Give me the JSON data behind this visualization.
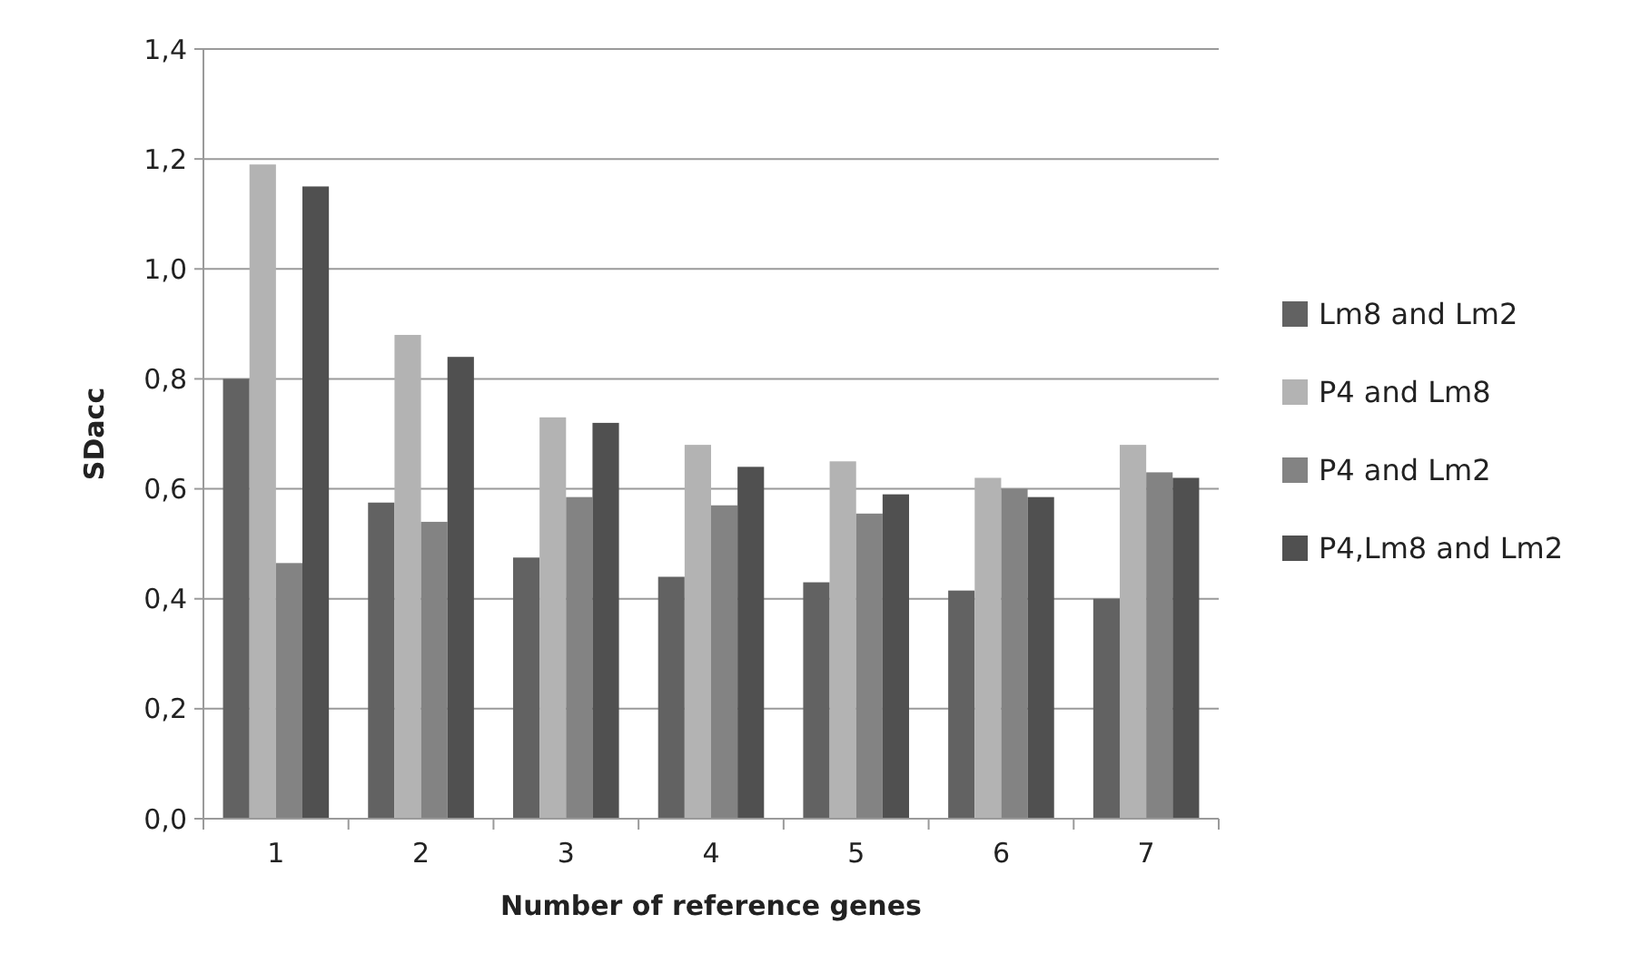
{
  "chart_data": {
    "type": "bar",
    "xlabel": "Number of reference genes",
    "ylabel": "SDacc",
    "categories": [
      "1",
      "2",
      "3",
      "4",
      "5",
      "6",
      "7"
    ],
    "series": [
      {
        "name": "Lm8 and Lm2",
        "color": "#626262",
        "values": [
          0.8,
          0.575,
          0.475,
          0.44,
          0.43,
          0.415,
          0.4
        ]
      },
      {
        "name": "P4 and Lm8",
        "color": "#b3b3b3",
        "values": [
          1.19,
          0.88,
          0.73,
          0.68,
          0.65,
          0.62,
          0.68
        ]
      },
      {
        "name": "P4 and Lm2",
        "color": "#838383",
        "values": [
          0.465,
          0.54,
          0.585,
          0.57,
          0.555,
          0.6,
          0.63
        ]
      },
      {
        "name": "P4,Lm8 and Lm2",
        "color": "#505050",
        "values": [
          1.15,
          0.84,
          0.72,
          0.64,
          0.59,
          0.585,
          0.62
        ]
      }
    ],
    "ylim": [
      0,
      1.4
    ],
    "yticks": [
      {
        "value": 0,
        "label": "0,0"
      },
      {
        "value": 0.2,
        "label": "0,2"
      },
      {
        "value": 0.4,
        "label": "0,4"
      },
      {
        "value": 0.6,
        "label": "0,6"
      },
      {
        "value": 0.8,
        "label": "0,8"
      },
      {
        "value": 1.0,
        "label": "1,0"
      },
      {
        "value": 1.2,
        "label": "1,2"
      },
      {
        "value": 1.4,
        "label": "1,4"
      }
    ],
    "grid": "y",
    "legend": "right"
  }
}
